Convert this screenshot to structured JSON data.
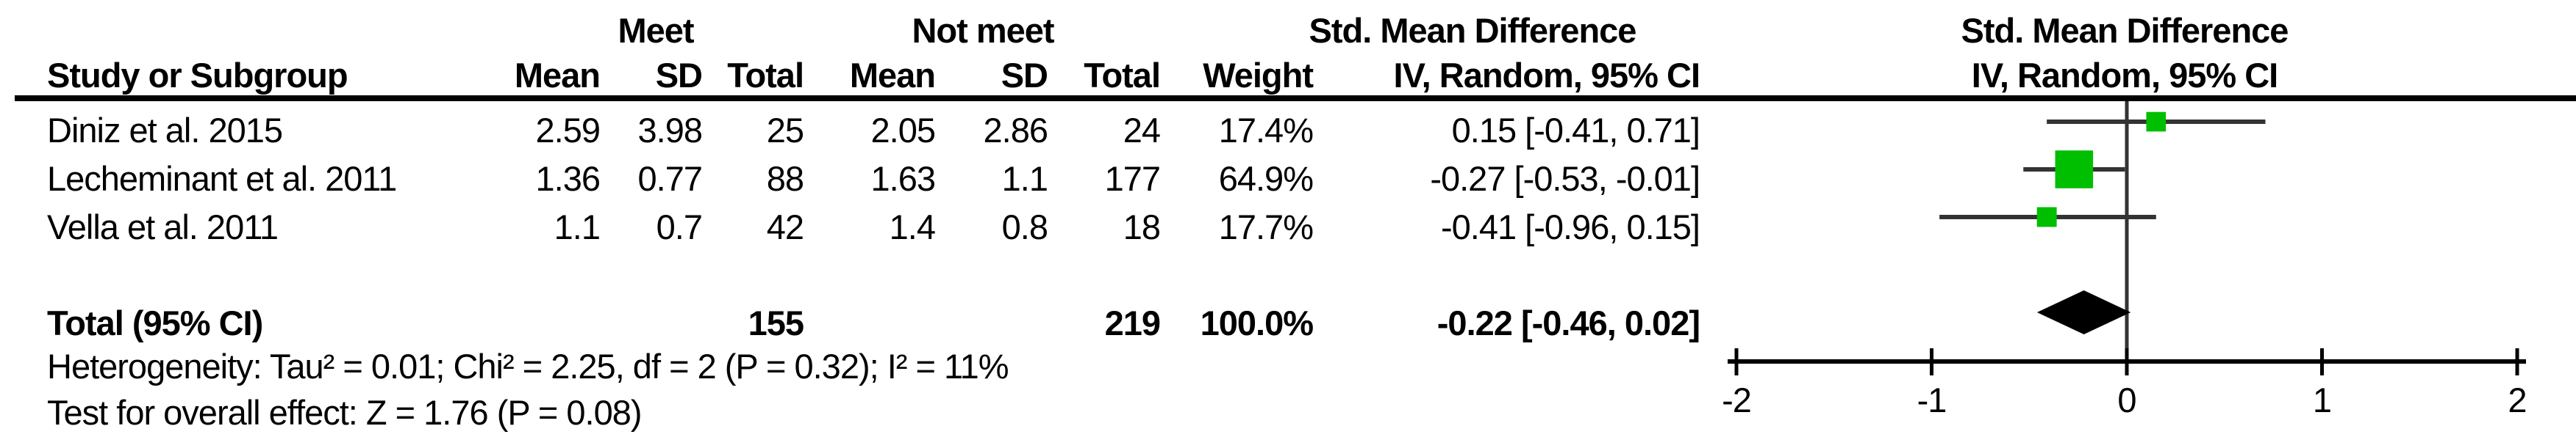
{
  "header": {
    "group1": "Meet",
    "group2": "Not meet",
    "effect_col_line1": "Std. Mean Difference",
    "effect_col_line2": "IV, Random, 95% CI",
    "plot_col_line1": "Std. Mean Difference",
    "plot_col_line2": "IV, Random, 95% CI",
    "columns": {
      "study": "Study or Subgroup",
      "mean1": "Mean",
      "sd1": "SD",
      "total1": "Total",
      "mean2": "Mean",
      "sd2": "SD",
      "total2": "Total",
      "weight": "Weight"
    }
  },
  "rows": [
    {
      "study": "Diniz et al. 2015",
      "mean1": "2.59",
      "sd1": "3.98",
      "total1": "25",
      "mean2": "2.05",
      "sd2": "2.86",
      "total2": "24",
      "weight": "17.4%",
      "effect": "0.15 [-0.41, 0.71]"
    },
    {
      "study": "Lecheminant et al. 2011",
      "mean1": "1.36",
      "sd1": "0.77",
      "total1": "88",
      "mean2": "1.63",
      "sd2": "1.1",
      "total2": "177",
      "weight": "64.9%",
      "effect": "-0.27 [-0.53, -0.01]"
    },
    {
      "study": "Vella et al. 2011",
      "mean1": "1.1",
      "sd1": "0.7",
      "total1": "42",
      "mean2": "1.4",
      "sd2": "0.8",
      "total2": "18",
      "weight": "17.7%",
      "effect": "-0.41 [-0.96, 0.15]"
    }
  ],
  "total": {
    "label": "Total (95% CI)",
    "total1": "155",
    "total2": "219",
    "weight": "100.0%",
    "effect": "-0.22 [-0.46, 0.02]"
  },
  "footer": {
    "heterogeneity": "Heterogeneity: Tau² = 0.01; Chi² = 2.25, df = 2 (P = 0.32); I² = 11%",
    "overall_effect": "Test for overall effect: Z = 1.76 (P = 0.08)"
  },
  "chart_data": {
    "type": "forest",
    "title": "Std. Mean Difference",
    "subtitle": "IV, Random, 95% CI",
    "x_axis": {
      "range": [
        -2,
        2
      ],
      "ticks": [
        -2,
        -1,
        0,
        1,
        2
      ],
      "tick_labels": [
        "-2",
        "-1",
        "0",
        "1",
        "2"
      ]
    },
    "studies": [
      {
        "name": "Diniz et al. 2015",
        "smd": 0.15,
        "ci_low": -0.41,
        "ci_high": 0.71,
        "weight_pct": 17.4
      },
      {
        "name": "Lecheminant et al. 2011",
        "smd": -0.27,
        "ci_low": -0.53,
        "ci_high": -0.01,
        "weight_pct": 64.9
      },
      {
        "name": "Vella et al. 2011",
        "smd": -0.41,
        "ci_low": -0.96,
        "ci_high": 0.15,
        "weight_pct": 17.7
      }
    ],
    "total": {
      "smd": -0.22,
      "ci_low": -0.46,
      "ci_high": 0.02
    },
    "marker_color": "#00be00",
    "ci_line_color": "#333333",
    "axis_color": "#000000"
  }
}
